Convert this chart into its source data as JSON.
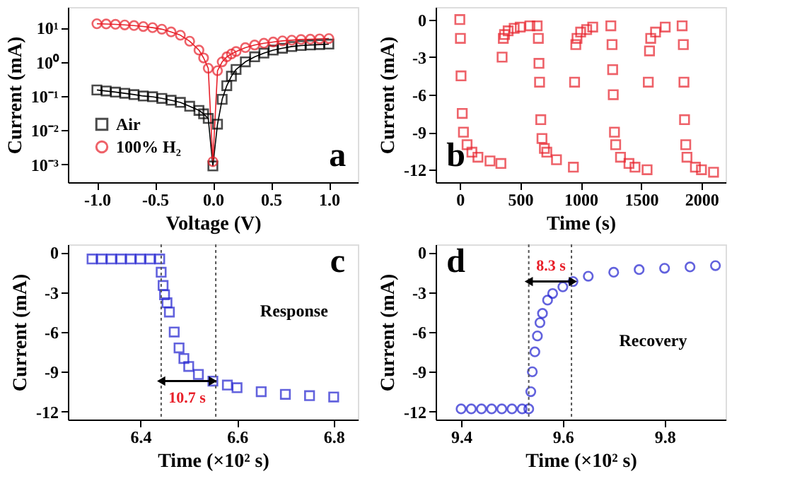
{
  "chart_data": [
    {
      "type": "line",
      "xlabel": "Voltage (V)",
      "ylabel": "Current (mA)",
      "log": true,
      "legend": "bottom left",
      "grid": false,
      "xlim": [
        -1.25,
        1.25
      ],
      "xticks": [
        {
          "value": -1,
          "label": "-1.0"
        },
        -0.5,
        {
          "value": 0,
          "label": "0.0"
        },
        0.5,
        {
          "value": 1,
          "label": "1.0"
        }
      ],
      "ylim": [
        0.0003,
        40
      ],
      "yticks": [
        {
          "value": 0.001,
          "label": "10⁻³"
        },
        {
          "value": 0.01,
          "label": "10⁻²"
        },
        {
          "value": 0.1,
          "label": "10⁻¹"
        },
        {
          "value": 1,
          "label": "10⁰"
        },
        {
          "value": 10,
          "label": "10¹"
        }
      ],
      "annotations": [
        "a"
      ],
      "series": [
        {
          "name": "Air",
          "color": "#000000",
          "marker": "square",
          "x": [
            -1,
            -0.92,
            -0.84,
            -0.76,
            -0.68,
            -0.6,
            -0.52,
            -0.44,
            -0.36,
            -0.28,
            -0.2,
            -0.12,
            -0.08,
            -0.04,
            0,
            0.04,
            0.08,
            0.12,
            0.16,
            0.2,
            0.28,
            0.36,
            0.44,
            0.52,
            0.6,
            0.68,
            0.76,
            0.84,
            0.92,
            1
          ],
          "values": [
            0.15,
            0.14,
            0.13,
            0.12,
            0.11,
            0.1,
            0.095,
            0.085,
            0.075,
            0.065,
            0.05,
            0.038,
            0.03,
            0.022,
            0.0009,
            0.015,
            0.08,
            0.2,
            0.38,
            0.6,
            1.0,
            1.4,
            1.8,
            2.2,
            2.5,
            2.8,
            3.0,
            3.1,
            3.2,
            3.3
          ]
        },
        {
          "name": "100% H₂",
          "color": "#e8202a",
          "marker": "circle",
          "x": [
            -1,
            -0.92,
            -0.84,
            -0.76,
            -0.68,
            -0.6,
            -0.52,
            -0.44,
            -0.36,
            -0.28,
            -0.2,
            -0.12,
            -0.08,
            -0.04,
            0,
            0.04,
            0.08,
            0.12,
            0.16,
            0.2,
            0.28,
            0.36,
            0.44,
            0.52,
            0.6,
            0.68,
            0.76,
            0.84,
            0.92,
            1
          ],
          "values": [
            13,
            12.8,
            12.5,
            12,
            11.5,
            10.8,
            10,
            9,
            7.5,
            6,
            4,
            2.2,
            1.3,
            0.65,
            0.0012,
            0.55,
            1.0,
            1.4,
            1.7,
            2.0,
            2.6,
            3.1,
            3.5,
            3.8,
            4.1,
            4.3,
            4.5,
            4.6,
            4.7,
            4.8
          ]
        }
      ]
    },
    {
      "type": "scatter",
      "xlabel": "Time (s)",
      "ylabel": "Current (mA)",
      "grid": false,
      "xlim": [
        -200,
        2200
      ],
      "xticks": [
        0,
        500,
        1000,
        1500,
        2000
      ],
      "ylim": [
        -13,
        1
      ],
      "yticks": [
        0,
        -3,
        -6,
        -9,
        -12
      ],
      "annotations": [
        "b"
      ],
      "series": [
        {
          "color": "#e8202a",
          "marker": "square",
          "x": [
            0,
            5,
            10,
            20,
            30,
            60,
            100,
            150,
            250,
            340,
            350,
            360,
            370,
            400,
            450,
            500,
            580,
            640,
            650,
            655,
            660,
            670,
            680,
            700,
            720,
            800,
            940,
            950,
            960,
            970,
            1000,
            1050,
            1100,
            1250,
            1260,
            1265,
            1270,
            1280,
            1290,
            1330,
            1400,
            1450,
            1550,
            1560,
            1570,
            1580,
            1620,
            1700,
            1840,
            1850,
            1855,
            1860,
            1870,
            1880,
            1950,
            2000,
            2100
          ],
          "values": [
            0,
            -1.5,
            -4.5,
            -7.5,
            -9,
            -10,
            -10.6,
            -11,
            -11.3,
            -11.5,
            -3,
            -1.5,
            -1.2,
            -0.9,
            -0.7,
            -0.6,
            -0.5,
            -0.5,
            -1.5,
            -3.5,
            -5,
            -8,
            -9.5,
            -10.3,
            -10.6,
            -11.2,
            -11.8,
            -5,
            -2,
            -1.5,
            -1,
            -0.8,
            -0.6,
            -0.5,
            -2,
            -4,
            -6,
            -9,
            -10,
            -11,
            -11.5,
            -11.8,
            -12,
            -5,
            -2.5,
            -1.5,
            -1,
            -0.6,
            -0.5,
            -2,
            -5,
            -8,
            -10,
            -11,
            -11.8,
            -12,
            -12.2
          ]
        }
      ]
    },
    {
      "type": "scatter",
      "xlabel": "Time (×10² s)",
      "ylabel": "Current (mA)",
      "grid": false,
      "xlim": [
        6.25,
        6.85
      ],
      "xticks": [
        6.4,
        6.6,
        6.8
      ],
      "ylim": [
        -12.6,
        0.6
      ],
      "yticks": [
        0,
        -3,
        -6,
        -9,
        -12
      ],
      "ref_lines": [
        {
          "axis": "x",
          "value": 6.443,
          "color": "#555555",
          "line_style": "dotted"
        },
        {
          "axis": "x",
          "value": 6.556,
          "color": "#555555",
          "line_style": "dotted"
        }
      ],
      "annotations": [
        "c",
        "Response",
        {
          "text": "10.7 s",
          "x": 6.55,
          "y": -9.7
        }
      ],
      "series": [
        {
          "color": "#2020d0",
          "marker": "square",
          "x": [
            6.3,
            6.32,
            6.34,
            6.36,
            6.38,
            6.4,
            6.42,
            6.44,
            6.443,
            6.447,
            6.45,
            6.455,
            6.46,
            6.47,
            6.48,
            6.49,
            6.5,
            6.52,
            6.55,
            6.58,
            6.6,
            6.65,
            6.7,
            6.75,
            6.8
          ],
          "values": [
            -0.5,
            -0.5,
            -0.5,
            -0.5,
            -0.5,
            -0.5,
            -0.5,
            -0.5,
            -1.5,
            -2.5,
            -3.2,
            -3.8,
            -4.5,
            -6,
            -7.2,
            -8,
            -8.6,
            -9.2,
            -9.7,
            -10,
            -10.2,
            -10.5,
            -10.7,
            -10.8,
            -10.9
          ]
        }
      ]
    },
    {
      "type": "scatter",
      "xlabel": "Time (×10² s)",
      "ylabel": "Current (mA)",
      "grid": false,
      "xlim": [
        9.35,
        9.92
      ],
      "xticks": [
        9.4,
        9.6,
        9.8
      ],
      "ylim": [
        -12.6,
        0.6
      ],
      "yticks": [
        0,
        -3,
        -6,
        -9,
        -12
      ],
      "ref_lines": [
        {
          "axis": "x",
          "value": 9.533,
          "color": "#555555",
          "line_style": "dotted"
        },
        {
          "axis": "x",
          "value": 9.617,
          "color": "#555555",
          "line_style": "dotted"
        }
      ],
      "annotations": [
        "d",
        "Recovery",
        {
          "text": "8.3 s",
          "x": 9.62,
          "y": -2.2
        }
      ],
      "series": [
        {
          "color": "#2020d0",
          "marker": "circle",
          "x": [
            9.4,
            9.42,
            9.44,
            9.46,
            9.48,
            9.5,
            9.52,
            9.533,
            9.537,
            9.54,
            9.545,
            9.55,
            9.555,
            9.56,
            9.57,
            9.58,
            9.6,
            9.62,
            9.65,
            9.7,
            9.75,
            9.8,
            9.85,
            9.9
          ],
          "values": [
            -11.8,
            -11.8,
            -11.8,
            -11.8,
            -11.8,
            -11.8,
            -11.8,
            -11.8,
            -10.5,
            -9,
            -7.5,
            -6.3,
            -5.3,
            -4.6,
            -3.6,
            -3.1,
            -2.6,
            -2.2,
            -1.8,
            -1.5,
            -1.3,
            -1.2,
            -1.1,
            -1.0
          ]
        }
      ]
    }
  ]
}
